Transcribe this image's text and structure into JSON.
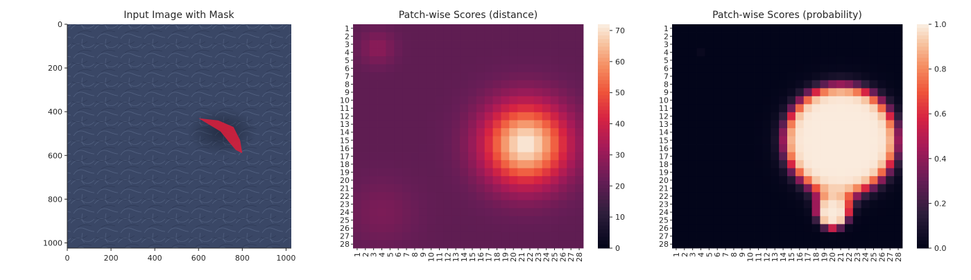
{
  "chart_data": [
    {
      "id": "panel-image",
      "type": "image",
      "title": "Input Image with Mask",
      "x_ticks": [
        0,
        200,
        400,
        600,
        800,
        1000
      ],
      "y_ticks": [
        0,
        200,
        400,
        600,
        800,
        1000
      ],
      "xlim": [
        0,
        1024
      ],
      "ylim": [
        1024,
        0
      ],
      "background_color": "#3a4766",
      "mask_color": "#d61f3c",
      "mask_polygon": [
        [
          600,
          430
        ],
        [
          690,
          440
        ],
        [
          760,
          470
        ],
        [
          790,
          530
        ],
        [
          800,
          590
        ],
        [
          770,
          575
        ],
        [
          740,
          540
        ],
        [
          700,
          490
        ],
        [
          650,
          460
        ]
      ]
    },
    {
      "id": "panel-distance",
      "type": "heatmap",
      "title": "Patch-wise Scores (distance)",
      "rows": 28,
      "cols": 28,
      "tick_labels": [
        "1",
        "2",
        "3",
        "4",
        "5",
        "6",
        "7",
        "8",
        "9",
        "10",
        "11",
        "12",
        "13",
        "14",
        "15",
        "16",
        "17",
        "18",
        "19",
        "20",
        "21",
        "22",
        "23",
        "24",
        "25",
        "26",
        "27",
        "28"
      ],
      "colorbar_ticks": [
        0,
        10,
        20,
        30,
        40,
        50,
        60,
        70
      ],
      "vmin": 0,
      "vmax": 72,
      "colormap": "rocket",
      "field": {
        "base": 20,
        "blobs": [
          {
            "row": 15.5,
            "col": 21.5,
            "amp": 52,
            "sigma": 3.6
          },
          {
            "row": 3.5,
            "col": 3.5,
            "amp": 8,
            "sigma": 1.5
          },
          {
            "row": 24,
            "col": 4,
            "amp": 5,
            "sigma": 3
          }
        ]
      }
    },
    {
      "id": "panel-probability",
      "type": "heatmap",
      "title": "Patch-wise Scores (probability)",
      "rows": 28,
      "cols": 28,
      "tick_labels": [
        "1",
        "2",
        "3",
        "4",
        "5",
        "6",
        "7",
        "8",
        "9",
        "10",
        "11",
        "12",
        "13",
        "14",
        "15",
        "16",
        "17",
        "18",
        "19",
        "20",
        "21",
        "22",
        "23",
        "24",
        "25",
        "26",
        "27",
        "28"
      ],
      "colorbar_ticks": [
        0.0,
        0.2,
        0.4,
        0.6,
        0.8,
        1.0
      ],
      "colorbar_tick_labels": [
        "0.0",
        "0.2",
        "0.4",
        "0.6",
        "0.8",
        "1.0"
      ],
      "vmin": 0,
      "vmax": 1,
      "colormap": "rocket",
      "field": {
        "base": 0.0,
        "blobs": [
          {
            "row": 15,
            "col": 21,
            "amp": 1.0,
            "sigma": 5.2
          },
          {
            "row": 24.5,
            "col": 20,
            "amp": 0.5,
            "sigma": 1.6
          },
          {
            "row": 4,
            "col": 4,
            "amp": 0.25,
            "sigma": 0.8
          }
        ],
        "steepness": 5.5,
        "threshold": 0.42
      }
    }
  ]
}
